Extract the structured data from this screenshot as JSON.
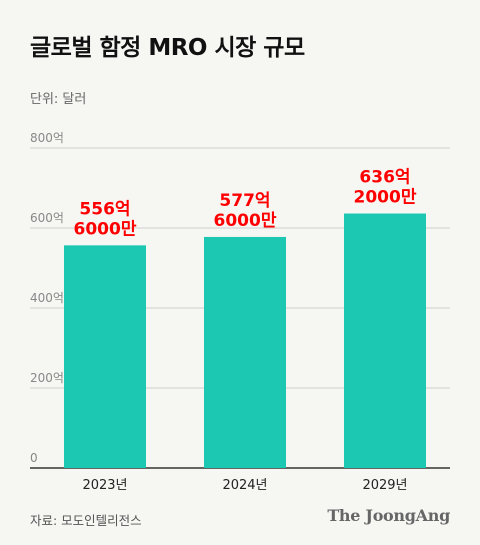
{
  "title": "글로벌 함정 MRO 시장 규모",
  "unit_label": "단위: 달러",
  "source": "자료: 모도인텔리전스",
  "brand": "The JoongAng",
  "colors": {
    "bar": "#1dc8b3",
    "value_label": "#ff0000",
    "grid": "#cfcfcf",
    "axis": "#333333"
  },
  "chart_data": {
    "type": "bar",
    "categories": [
      "2023년",
      "2024년",
      "2029년"
    ],
    "values": [
      556.6,
      577.6,
      636.2
    ],
    "value_labels": [
      [
        "556억",
        "6000만"
      ],
      [
        "577억",
        "6000만"
      ],
      [
        "636억",
        "2000만"
      ]
    ],
    "ylim": [
      0,
      800
    ],
    "yticks": [
      0,
      200,
      400,
      600,
      800
    ],
    "ytick_labels": [
      "0",
      "200억",
      "400억",
      "600억",
      "800억"
    ],
    "grid": true
  }
}
